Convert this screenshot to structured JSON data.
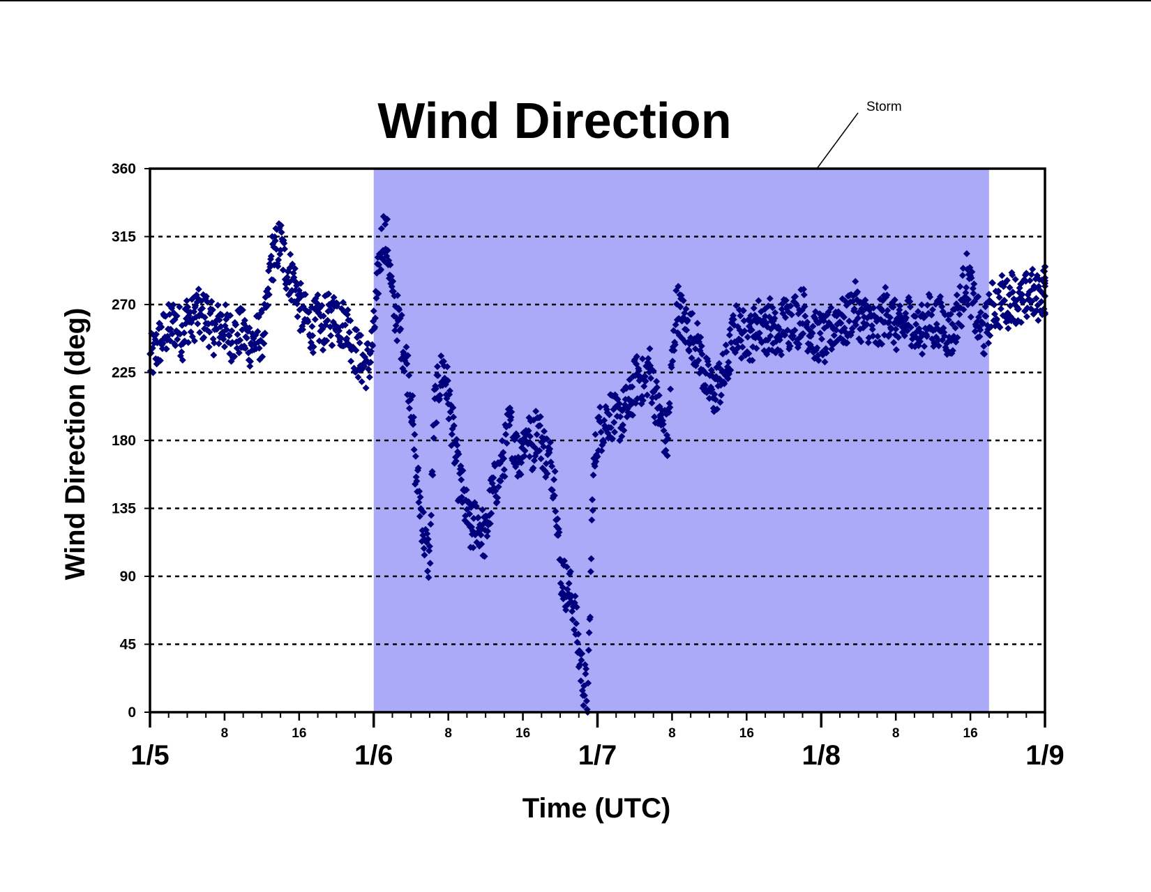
{
  "chart_data": {
    "type": "scatter",
    "title": "Wind Direction",
    "xlabel": "Time (UTC)",
    "ylabel": "Wind Direction (deg)",
    "ylim": [
      0,
      360
    ],
    "yticks": [
      0,
      45,
      90,
      135,
      180,
      225,
      270,
      315,
      360
    ],
    "grid": "horizontal dotted",
    "x_unit": "hours since 1/5 00:00 UTC",
    "xlim": [
      0,
      96
    ],
    "day_ticks": [
      {
        "label": "1/5",
        "hour": 0
      },
      {
        "label": "1/6",
        "hour": 24
      },
      {
        "label": "1/7",
        "hour": 48
      },
      {
        "label": "1/8",
        "hour": 72
      },
      {
        "label": "1/9",
        "hour": 96
      }
    ],
    "hour_ticks": [
      {
        "label": "8",
        "hour": 8
      },
      {
        "label": "16",
        "hour": 16
      },
      {
        "label": "8",
        "hour": 32
      },
      {
        "label": "16",
        "hour": 40
      },
      {
        "label": "8",
        "hour": 56
      },
      {
        "label": "16",
        "hour": 64
      },
      {
        "label": "8",
        "hour": 80
      },
      {
        "label": "16",
        "hour": 88
      }
    ],
    "minor_tick_step_hours": 2,
    "storm": {
      "label": "Storm",
      "start_hour": 24,
      "end_hour": 90,
      "color": "#aaaaf8"
    },
    "marker_color": "#00007c",
    "series": [
      {
        "values": [
          [
            0.0,
            232
          ],
          [
            0.5,
            238
          ],
          [
            1.0,
            245
          ],
          [
            1.5,
            250
          ],
          [
            2.0,
            254
          ],
          [
            2.5,
            258
          ],
          [
            3.0,
            255
          ],
          [
            3.5,
            250
          ],
          [
            4.0,
            262
          ],
          [
            4.5,
            258
          ],
          [
            5.0,
            266
          ],
          [
            5.5,
            260
          ],
          [
            6.0,
            264
          ],
          [
            6.5,
            256
          ],
          [
            7.0,
            252
          ],
          [
            7.5,
            258
          ],
          [
            8.0,
            255
          ],
          [
            8.5,
            250
          ],
          [
            9.0,
            248
          ],
          [
            9.5,
            252
          ],
          [
            10.0,
            250
          ],
          [
            10.5,
            246
          ],
          [
            11.0,
            244
          ],
          [
            11.5,
            248
          ],
          [
            12.0,
            250
          ],
          [
            12.5,
            262
          ],
          [
            13.0,
            300
          ],
          [
            13.5,
            305
          ],
          [
            14.0,
            312
          ],
          [
            14.5,
            296
          ],
          [
            15.0,
            290
          ],
          [
            15.5,
            285
          ],
          [
            16.0,
            270
          ],
          [
            16.5,
            262
          ],
          [
            17.0,
            258
          ],
          [
            17.5,
            255
          ],
          [
            18.0,
            260
          ],
          [
            18.5,
            255
          ],
          [
            19.0,
            262
          ],
          [
            19.5,
            258
          ],
          [
            20.0,
            268
          ],
          [
            20.5,
            255
          ],
          [
            21.0,
            260
          ],
          [
            21.5,
            250
          ],
          [
            22.0,
            240
          ],
          [
            22.5,
            235
          ],
          [
            23.0,
            230
          ],
          [
            23.5,
            232
          ],
          [
            24.0,
            250
          ],
          [
            24.5,
            290
          ],
          [
            25.0,
            318
          ],
          [
            25.5,
            310
          ],
          [
            26.0,
            272
          ],
          [
            26.5,
            262
          ],
          [
            27.0,
            248
          ],
          [
            27.5,
            232
          ],
          [
            28.0,
            210
          ],
          [
            28.5,
            160
          ],
          [
            29.0,
            138
          ],
          [
            29.5,
            112
          ],
          [
            30.0,
            100
          ],
          [
            30.5,
            200
          ],
          [
            31.0,
            218
          ],
          [
            31.5,
            228
          ],
          [
            32.0,
            210
          ],
          [
            32.5,
            185
          ],
          [
            33.0,
            158
          ],
          [
            33.5,
            146
          ],
          [
            34.0,
            130
          ],
          [
            34.5,
            118
          ],
          [
            35.0,
            128
          ],
          [
            35.5,
            122
          ],
          [
            36.0,
            115
          ],
          [
            36.5,
            138
          ],
          [
            37.0,
            150
          ],
          [
            37.5,
            158
          ],
          [
            38.0,
            170
          ],
          [
            38.5,
            190
          ],
          [
            39.0,
            182
          ],
          [
            39.5,
            168
          ],
          [
            40.0,
            178
          ],
          [
            40.5,
            186
          ],
          [
            41.0,
            174
          ],
          [
            41.5,
            190
          ],
          [
            42.0,
            180
          ],
          [
            42.5,
            170
          ],
          [
            43.0,
            165
          ],
          [
            43.5,
            150
          ],
          [
            44.0,
            95
          ],
          [
            44.5,
            85
          ],
          [
            45.0,
            80
          ],
          [
            45.5,
            70
          ],
          [
            46.0,
            40
          ],
          [
            46.5,
            20
          ],
          [
            47.0,
            10
          ],
          [
            47.5,
            150
          ],
          [
            48.0,
            185
          ],
          [
            48.5,
            190
          ],
          [
            49.0,
            195
          ],
          [
            49.5,
            198
          ],
          [
            50.0,
            192
          ],
          [
            50.5,
            196
          ],
          [
            51.0,
            200
          ],
          [
            51.5,
            205
          ],
          [
            52.0,
            218
          ],
          [
            52.5,
            224
          ],
          [
            53.0,
            215
          ],
          [
            53.5,
            230
          ],
          [
            54.0,
            215
          ],
          [
            54.5,
            200
          ],
          [
            55.0,
            190
          ],
          [
            55.5,
            180
          ],
          [
            56.0,
            230
          ],
          [
            56.5,
            270
          ],
          [
            57.0,
            262
          ],
          [
            57.5,
            255
          ],
          [
            58.0,
            252
          ],
          [
            58.5,
            245
          ],
          [
            59.0,
            238
          ],
          [
            59.5,
            222
          ],
          [
            60.0,
            215
          ],
          [
            60.5,
            212
          ],
          [
            61.0,
            218
          ],
          [
            61.5,
            222
          ],
          [
            62.0,
            232
          ],
          [
            62.5,
            248
          ],
          [
            63.0,
            255
          ],
          [
            63.5,
            250
          ],
          [
            64.0,
            252
          ],
          [
            64.5,
            248
          ],
          [
            65.0,
            256
          ],
          [
            65.5,
            260
          ],
          [
            66.0,
            252
          ],
          [
            66.5,
            258
          ],
          [
            67.0,
            250
          ],
          [
            67.5,
            245
          ],
          [
            68.0,
            262
          ],
          [
            68.5,
            255
          ],
          [
            69.0,
            265
          ],
          [
            69.5,
            258
          ],
          [
            70.0,
            268
          ],
          [
            70.5,
            256
          ],
          [
            71.0,
            252
          ],
          [
            71.5,
            248
          ],
          [
            72.0,
            250
          ],
          [
            72.5,
            245
          ],
          [
            73.0,
            252
          ],
          [
            73.5,
            258
          ],
          [
            74.0,
            262
          ],
          [
            74.5,
            255
          ],
          [
            75.0,
            262
          ],
          [
            75.5,
            270
          ],
          [
            76.0,
            265
          ],
          [
            76.5,
            258
          ],
          [
            77.0,
            262
          ],
          [
            77.5,
            255
          ],
          [
            78.0,
            250
          ],
          [
            78.5,
            260
          ],
          [
            79.0,
            268
          ],
          [
            79.5,
            262
          ],
          [
            80.0,
            255
          ],
          [
            80.5,
            252
          ],
          [
            81.0,
            258
          ],
          [
            81.5,
            262
          ],
          [
            82.0,
            255
          ],
          [
            82.5,
            250
          ],
          [
            83.0,
            256
          ],
          [
            83.5,
            262
          ],
          [
            84.0,
            255
          ],
          [
            84.5,
            260
          ],
          [
            85.0,
            258
          ],
          [
            85.5,
            252
          ],
          [
            86.0,
            250
          ],
          [
            86.5,
            262
          ],
          [
            87.0,
            270
          ],
          [
            87.5,
            290
          ],
          [
            88.0,
            280
          ],
          [
            88.5,
            265
          ],
          [
            89.0,
            255
          ],
          [
            89.5,
            250
          ],
          [
            90.0,
            262
          ],
          [
            90.5,
            272
          ],
          [
            91.0,
            268
          ],
          [
            91.5,
            275
          ],
          [
            92.0,
            270
          ],
          [
            92.5,
            278
          ],
          [
            93.0,
            272
          ],
          [
            93.5,
            268
          ],
          [
            94.0,
            275
          ],
          [
            94.5,
            280
          ],
          [
            95.0,
            272
          ],
          [
            95.5,
            278
          ],
          [
            96.0,
            280
          ]
        ]
      }
    ]
  }
}
